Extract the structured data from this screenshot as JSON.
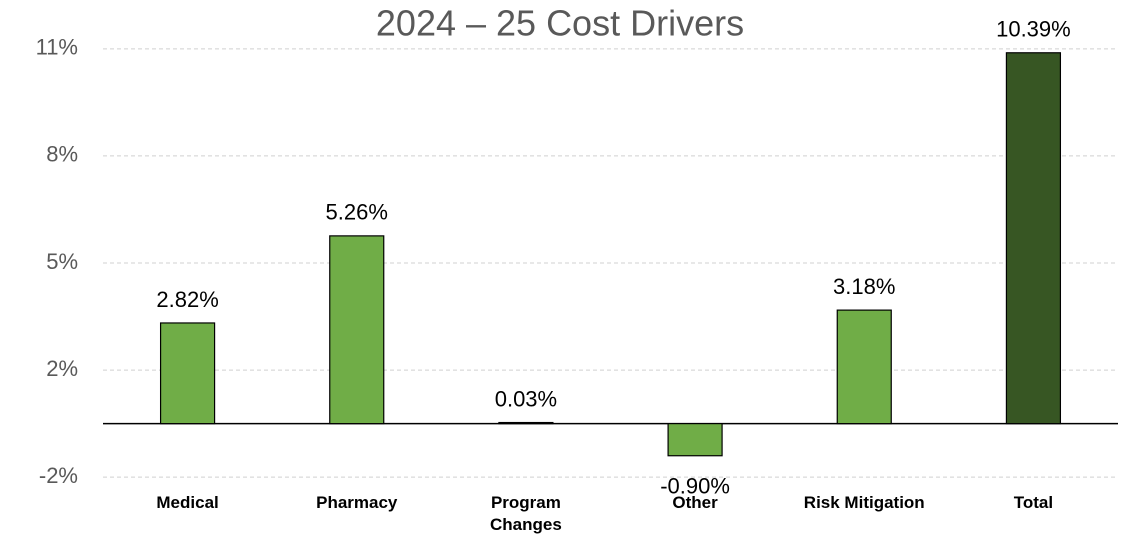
{
  "chart_data": {
    "type": "bar",
    "title": "2024 – 25 Cost Drivers",
    "categories": [
      "Medical",
      "Pharmacy",
      "Program Changes",
      "Other",
      "Risk Mitigation",
      "Total"
    ],
    "values": [
      2.82,
      5.26,
      0.03,
      -0.9,
      3.18,
      10.39
    ],
    "value_labels": [
      "2.82%",
      "5.26%",
      "0.03%",
      "-0.90%",
      "3.18%",
      "10.39%"
    ],
    "colors": [
      "#70ad47",
      "#70ad47",
      "#70ad47",
      "#70ad47",
      "#70ad47",
      "#375623"
    ],
    "ylim": [
      -2,
      11
    ],
    "yticks": [
      {
        "value": -1.5,
        "label": "-2%"
      },
      {
        "value": 1.5,
        "label": "2%"
      },
      {
        "value": 4.5,
        "label": "5%"
      },
      {
        "value": 7.5,
        "label": "8%"
      },
      {
        "value": 10.5,
        "label": "11%"
      }
    ],
    "grid": true
  }
}
